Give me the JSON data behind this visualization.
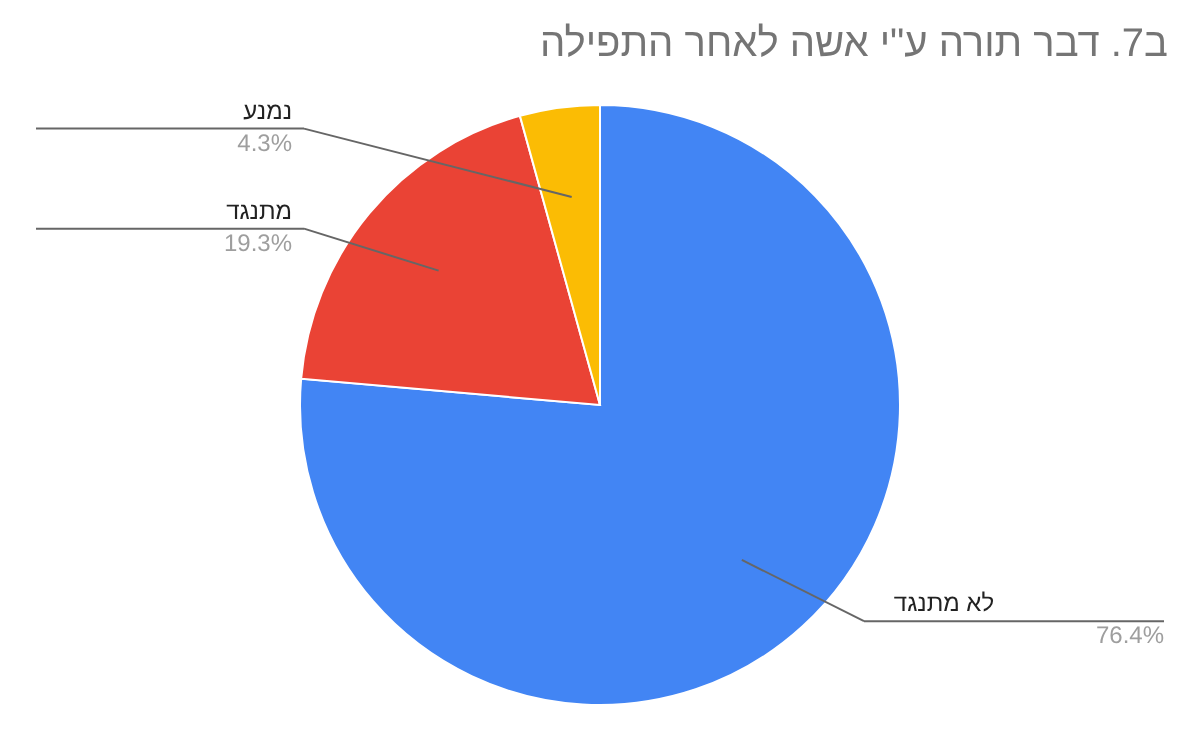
{
  "chart_data": {
    "type": "pie",
    "title": "ב7. דבר תורה ע\"י אשה לאחר התפילה",
    "categories": [
      "לא מתנגד",
      "מתנגד",
      "נמנע"
    ],
    "values": [
      76.4,
      19.3,
      4.3
    ],
    "value_labels": [
      "76.4%",
      "19.3%",
      "4.3%"
    ],
    "colors": [
      "#4285f4",
      "#ea4335",
      "#fbbc04"
    ],
    "legend": false
  }
}
